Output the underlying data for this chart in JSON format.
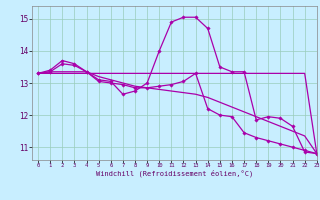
{
  "xlabel": "Windchill (Refroidissement éolien,°C)",
  "xlim": [
    -0.5,
    23
  ],
  "ylim": [
    10.6,
    15.4
  ],
  "xticks": [
    0,
    1,
    2,
    3,
    4,
    5,
    6,
    7,
    8,
    9,
    10,
    11,
    12,
    13,
    14,
    15,
    16,
    17,
    18,
    19,
    20,
    21,
    22,
    23
  ],
  "yticks": [
    11,
    12,
    13,
    14,
    15
  ],
  "background_color": "#c8eeff",
  "grid_color": "#99ccbb",
  "line_color": "#aa00aa",
  "line_width": 0.9,
  "marker": "D",
  "marker_size": 1.8,
  "series": [
    {
      "y": [
        13.3,
        13.4,
        13.7,
        13.6,
        13.35,
        13.1,
        13.05,
        12.65,
        12.75,
        13.0,
        14.0,
        14.9,
        15.05,
        15.05,
        14.7,
        13.5,
        13.35,
        13.35,
        11.85,
        11.95,
        11.9,
        11.65,
        10.85,
        10.8
      ],
      "markers": true
    },
    {
      "y": [
        13.3,
        13.35,
        13.35,
        13.35,
        13.35,
        13.2,
        13.1,
        13.0,
        12.9,
        12.85,
        12.8,
        12.75,
        12.7,
        12.65,
        12.55,
        12.4,
        12.25,
        12.1,
        11.95,
        11.8,
        11.65,
        11.5,
        11.35,
        10.8
      ],
      "markers": false
    },
    {
      "y": [
        13.3,
        13.35,
        13.6,
        13.55,
        13.35,
        13.05,
        13.0,
        12.95,
        12.85,
        12.85,
        12.9,
        12.95,
        13.05,
        13.3,
        12.2,
        12.0,
        11.95,
        11.45,
        11.3,
        11.2,
        11.1,
        11.0,
        10.9,
        10.8
      ],
      "markers": true
    },
    {
      "y": [
        13.3,
        13.3,
        13.3,
        13.3,
        13.3,
        13.3,
        13.3,
        13.3,
        13.3,
        13.3,
        13.3,
        13.3,
        13.3,
        13.3,
        13.3,
        13.3,
        13.3,
        13.3,
        13.3,
        13.3,
        13.3,
        13.3,
        13.3,
        10.8
      ],
      "markers": false
    }
  ]
}
